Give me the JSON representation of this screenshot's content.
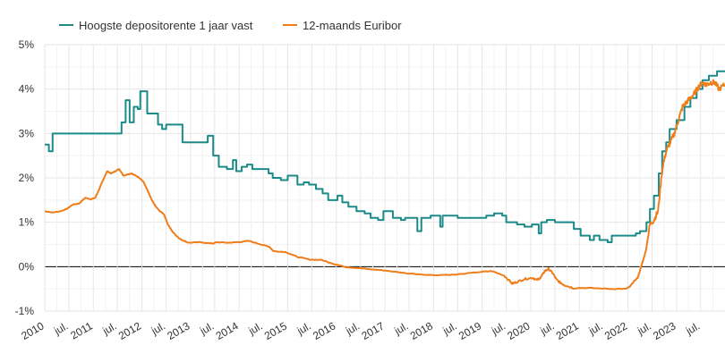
{
  "colors": {
    "teal": "#1b8a89",
    "orange": "#ef7d1a",
    "grid": "#e6e6e6",
    "zero_line": "#000000",
    "text": "#333333"
  },
  "chart_data": {
    "type": "line",
    "title": "",
    "xlabel": "",
    "ylabel": "",
    "ylim": [
      -1,
      5
    ],
    "xlim": [
      "2010-01-01",
      "2023-12-31"
    ],
    "y_ticks": [
      5,
      4,
      3,
      2,
      1,
      0,
      -1
    ],
    "y_tick_labels": [
      "5%",
      "4%",
      "3%",
      "2%",
      "1%",
      "0%",
      "-1%"
    ],
    "x_ticks": [
      {
        "date": "2010-01-01",
        "label": "2010"
      },
      {
        "date": "2010-07-01",
        "label": "jul."
      },
      {
        "date": "2011-01-01",
        "label": "2011"
      },
      {
        "date": "2011-07-01",
        "label": "jul."
      },
      {
        "date": "2012-01-01",
        "label": "2012"
      },
      {
        "date": "2012-07-01",
        "label": "jul."
      },
      {
        "date": "2013-01-01",
        "label": "2013"
      },
      {
        "date": "2013-07-01",
        "label": "jul."
      },
      {
        "date": "2014-01-01",
        "label": "2014"
      },
      {
        "date": "2014-07-01",
        "label": "jul."
      },
      {
        "date": "2015-01-01",
        "label": "2015"
      },
      {
        "date": "2015-07-01",
        "label": "jul."
      },
      {
        "date": "2016-01-01",
        "label": "2016"
      },
      {
        "date": "2016-07-01",
        "label": "jul."
      },
      {
        "date": "2017-01-01",
        "label": "2017"
      },
      {
        "date": "2017-07-01",
        "label": "jul."
      },
      {
        "date": "2018-01-01",
        "label": "2018"
      },
      {
        "date": "2018-07-01",
        "label": "jul."
      },
      {
        "date": "2019-01-01",
        "label": "2019"
      },
      {
        "date": "2019-07-01",
        "label": "jul."
      },
      {
        "date": "2020-01-01",
        "label": "2020"
      },
      {
        "date": "2020-07-01",
        "label": "jul."
      },
      {
        "date": "2021-01-01",
        "label": "2021"
      },
      {
        "date": "2021-07-01",
        "label": "jul."
      },
      {
        "date": "2022-01-01",
        "label": "2022"
      },
      {
        "date": "2022-07-01",
        "label": "jul."
      },
      {
        "date": "2023-01-01",
        "label": "2023"
      },
      {
        "date": "2023-07-01",
        "label": "jul."
      }
    ],
    "grid": true,
    "legend_position": "top-left",
    "series": [
      {
        "name": "Hoogste depositorente 1 jaar vast",
        "color": "#1b8a89",
        "step": true,
        "points": [
          [
            "2010-01-01",
            2.75
          ],
          [
            "2010-02-01",
            2.6
          ],
          [
            "2010-03-01",
            3.0
          ],
          [
            "2011-07-15",
            3.0
          ],
          [
            "2011-08-01",
            3.25
          ],
          [
            "2011-09-01",
            3.75
          ],
          [
            "2011-10-01",
            3.25
          ],
          [
            "2011-11-01",
            3.6
          ],
          [
            "2011-12-01",
            3.55
          ],
          [
            "2011-12-20",
            3.95
          ],
          [
            "2012-02-10",
            3.45
          ],
          [
            "2012-05-01",
            3.2
          ],
          [
            "2012-06-01",
            3.1
          ],
          [
            "2012-07-01",
            3.2
          ],
          [
            "2012-11-01",
            2.8
          ],
          [
            "2013-05-10",
            2.95
          ],
          [
            "2013-06-20",
            2.5
          ],
          [
            "2013-08-01",
            2.25
          ],
          [
            "2013-10-01",
            2.2
          ],
          [
            "2013-11-15",
            2.4
          ],
          [
            "2013-12-10",
            2.15
          ],
          [
            "2014-01-20",
            2.25
          ],
          [
            "2014-03-01",
            2.3
          ],
          [
            "2014-04-10",
            2.2
          ],
          [
            "2014-08-10",
            2.1
          ],
          [
            "2014-09-10",
            2.0
          ],
          [
            "2014-11-10",
            1.95
          ],
          [
            "2015-01-01",
            2.05
          ],
          [
            "2015-03-15",
            1.85
          ],
          [
            "2015-05-01",
            1.9
          ],
          [
            "2015-06-10",
            1.85
          ],
          [
            "2015-08-01",
            1.75
          ],
          [
            "2015-09-20",
            1.65
          ],
          [
            "2015-11-01",
            1.5
          ],
          [
            "2016-01-10",
            1.6
          ],
          [
            "2016-02-15",
            1.45
          ],
          [
            "2016-04-01",
            1.35
          ],
          [
            "2016-06-01",
            1.25
          ],
          [
            "2016-08-01",
            1.2
          ],
          [
            "2016-09-15",
            1.1
          ],
          [
            "2016-11-10",
            1.05
          ],
          [
            "2016-12-20",
            1.25
          ],
          [
            "2017-03-01",
            1.1
          ],
          [
            "2017-05-01",
            1.05
          ],
          [
            "2017-06-01",
            1.1
          ],
          [
            "2017-09-01",
            0.8
          ],
          [
            "2017-10-01",
            1.1
          ],
          [
            "2017-12-10",
            1.15
          ],
          [
            "2018-02-20",
            0.9
          ],
          [
            "2018-03-10",
            1.15
          ],
          [
            "2018-07-01",
            1.1
          ],
          [
            "2019-02-01",
            1.15
          ],
          [
            "2019-04-01",
            1.2
          ],
          [
            "2019-06-01",
            1.15
          ],
          [
            "2019-07-01",
            1.0
          ],
          [
            "2019-09-20",
            0.95
          ],
          [
            "2019-11-15",
            0.9
          ],
          [
            "2020-01-10",
            0.95
          ],
          [
            "2020-03-01",
            0.75
          ],
          [
            "2020-03-20",
            1.0
          ],
          [
            "2020-05-01",
            1.05
          ],
          [
            "2020-07-01",
            1.0
          ],
          [
            "2020-10-01",
            1.0
          ],
          [
            "2020-11-20",
            0.85
          ],
          [
            "2021-01-10",
            0.7
          ],
          [
            "2021-03-20",
            0.6
          ],
          [
            "2021-04-20",
            0.7
          ],
          [
            "2021-06-01",
            0.6
          ],
          [
            "2021-08-01",
            0.55
          ],
          [
            "2021-09-01",
            0.7
          ],
          [
            "2022-03-01",
            0.75
          ],
          [
            "2022-04-01",
            0.8
          ],
          [
            "2022-05-20",
            1.0
          ],
          [
            "2022-06-15",
            1.3
          ],
          [
            "2022-07-15",
            1.6
          ],
          [
            "2022-08-20",
            2.1
          ],
          [
            "2022-09-15",
            2.6
          ],
          [
            "2022-10-15",
            2.8
          ],
          [
            "2022-11-10",
            3.1
          ],
          [
            "2023-01-01",
            3.3
          ],
          [
            "2023-03-01",
            3.6
          ],
          [
            "2023-04-15",
            3.8
          ],
          [
            "2023-06-01",
            4.0
          ],
          [
            "2023-07-15",
            4.2
          ],
          [
            "2023-09-01",
            4.3
          ],
          [
            "2023-11-01",
            4.4
          ],
          [
            "2023-12-31",
            4.4
          ]
        ]
      },
      {
        "name": "12-maands Euribor",
        "color": "#ef7d1a",
        "step": false,
        "points": [
          [
            "2010-01-01",
            1.25
          ],
          [
            "2010-03-01",
            1.22
          ],
          [
            "2010-05-01",
            1.25
          ],
          [
            "2010-06-15",
            1.3
          ],
          [
            "2010-08-01",
            1.4
          ],
          [
            "2010-09-15",
            1.42
          ],
          [
            "2010-11-01",
            1.55
          ],
          [
            "2010-12-15",
            1.52
          ],
          [
            "2011-01-15",
            1.55
          ],
          [
            "2011-02-15",
            1.75
          ],
          [
            "2011-03-15",
            1.95
          ],
          [
            "2011-04-15",
            2.15
          ],
          [
            "2011-05-15",
            2.1
          ],
          [
            "2011-06-15",
            2.15
          ],
          [
            "2011-07-15",
            2.2
          ],
          [
            "2011-08-15",
            2.05
          ],
          [
            "2011-09-15",
            2.08
          ],
          [
            "2011-10-15",
            2.1
          ],
          [
            "2011-11-15",
            2.05
          ],
          [
            "2011-12-15",
            2.0
          ],
          [
            "2012-01-15",
            1.9
          ],
          [
            "2012-02-15",
            1.7
          ],
          [
            "2012-03-15",
            1.5
          ],
          [
            "2012-04-15",
            1.35
          ],
          [
            "2012-05-15",
            1.25
          ],
          [
            "2012-06-15",
            1.18
          ],
          [
            "2012-07-15",
            0.95
          ],
          [
            "2012-08-15",
            0.8
          ],
          [
            "2012-09-15",
            0.7
          ],
          [
            "2012-10-15",
            0.62
          ],
          [
            "2012-11-15",
            0.58
          ],
          [
            "2012-12-15",
            0.54
          ],
          [
            "2013-03-15",
            0.55
          ],
          [
            "2013-06-15",
            0.52
          ],
          [
            "2013-07-15",
            0.55
          ],
          [
            "2013-10-15",
            0.54
          ],
          [
            "2013-12-15",
            0.55
          ],
          [
            "2014-03-15",
            0.58
          ],
          [
            "2014-06-15",
            0.5
          ],
          [
            "2014-08-15",
            0.45
          ],
          [
            "2014-09-15",
            0.35
          ],
          [
            "2014-12-15",
            0.33
          ],
          [
            "2015-03-15",
            0.22
          ],
          [
            "2015-06-15",
            0.16
          ],
          [
            "2015-09-15",
            0.15
          ],
          [
            "2015-12-15",
            0.06
          ],
          [
            "2016-03-15",
            -0.01
          ],
          [
            "2016-06-15",
            -0.03
          ],
          [
            "2016-09-15",
            -0.06
          ],
          [
            "2016-12-15",
            -0.08
          ],
          [
            "2017-06-15",
            -0.15
          ],
          [
            "2017-12-15",
            -0.19
          ],
          [
            "2018-06-15",
            -0.18
          ],
          [
            "2018-12-15",
            -0.12
          ],
          [
            "2019-03-15",
            -0.1
          ],
          [
            "2019-06-15",
            -0.2
          ],
          [
            "2019-08-15",
            -0.38
          ],
          [
            "2019-09-15",
            -0.35
          ],
          [
            "2019-11-15",
            -0.28
          ],
          [
            "2020-01-15",
            -0.25
          ],
          [
            "2020-02-15",
            -0.3
          ],
          [
            "2020-03-15",
            -0.25
          ],
          [
            "2020-04-15",
            -0.1
          ],
          [
            "2020-05-15",
            -0.05
          ],
          [
            "2020-06-15",
            -0.15
          ],
          [
            "2020-07-15",
            -0.3
          ],
          [
            "2020-08-15",
            -0.37
          ],
          [
            "2020-09-15",
            -0.42
          ],
          [
            "2020-11-15",
            -0.48
          ],
          [
            "2021-03-15",
            -0.48
          ],
          [
            "2021-08-15",
            -0.5
          ],
          [
            "2021-12-15",
            -0.5
          ],
          [
            "2022-01-15",
            -0.45
          ],
          [
            "2022-02-15",
            -0.33
          ],
          [
            "2022-03-15",
            -0.25
          ],
          [
            "2022-04-15",
            0.05
          ],
          [
            "2022-05-15",
            0.35
          ],
          [
            "2022-06-15",
            0.95
          ],
          [
            "2022-07-15",
            1.05
          ],
          [
            "2022-08-15",
            1.25
          ],
          [
            "2022-09-15",
            2.2
          ],
          [
            "2022-10-15",
            2.6
          ],
          [
            "2022-11-15",
            2.8
          ],
          [
            "2022-12-15",
            3.0
          ],
          [
            "2023-01-15",
            3.3
          ],
          [
            "2023-02-15",
            3.6
          ],
          [
            "2023-03-15",
            3.7
          ],
          [
            "2023-04-15",
            3.8
          ],
          [
            "2023-05-15",
            3.9
          ],
          [
            "2023-06-15",
            4.05
          ],
          [
            "2023-07-15",
            4.15
          ],
          [
            "2023-08-15",
            4.1
          ],
          [
            "2023-09-15",
            4.15
          ],
          [
            "2023-10-15",
            4.15
          ],
          [
            "2023-11-15",
            4.0
          ],
          [
            "2023-12-31",
            4.1
          ]
        ]
      }
    ]
  }
}
